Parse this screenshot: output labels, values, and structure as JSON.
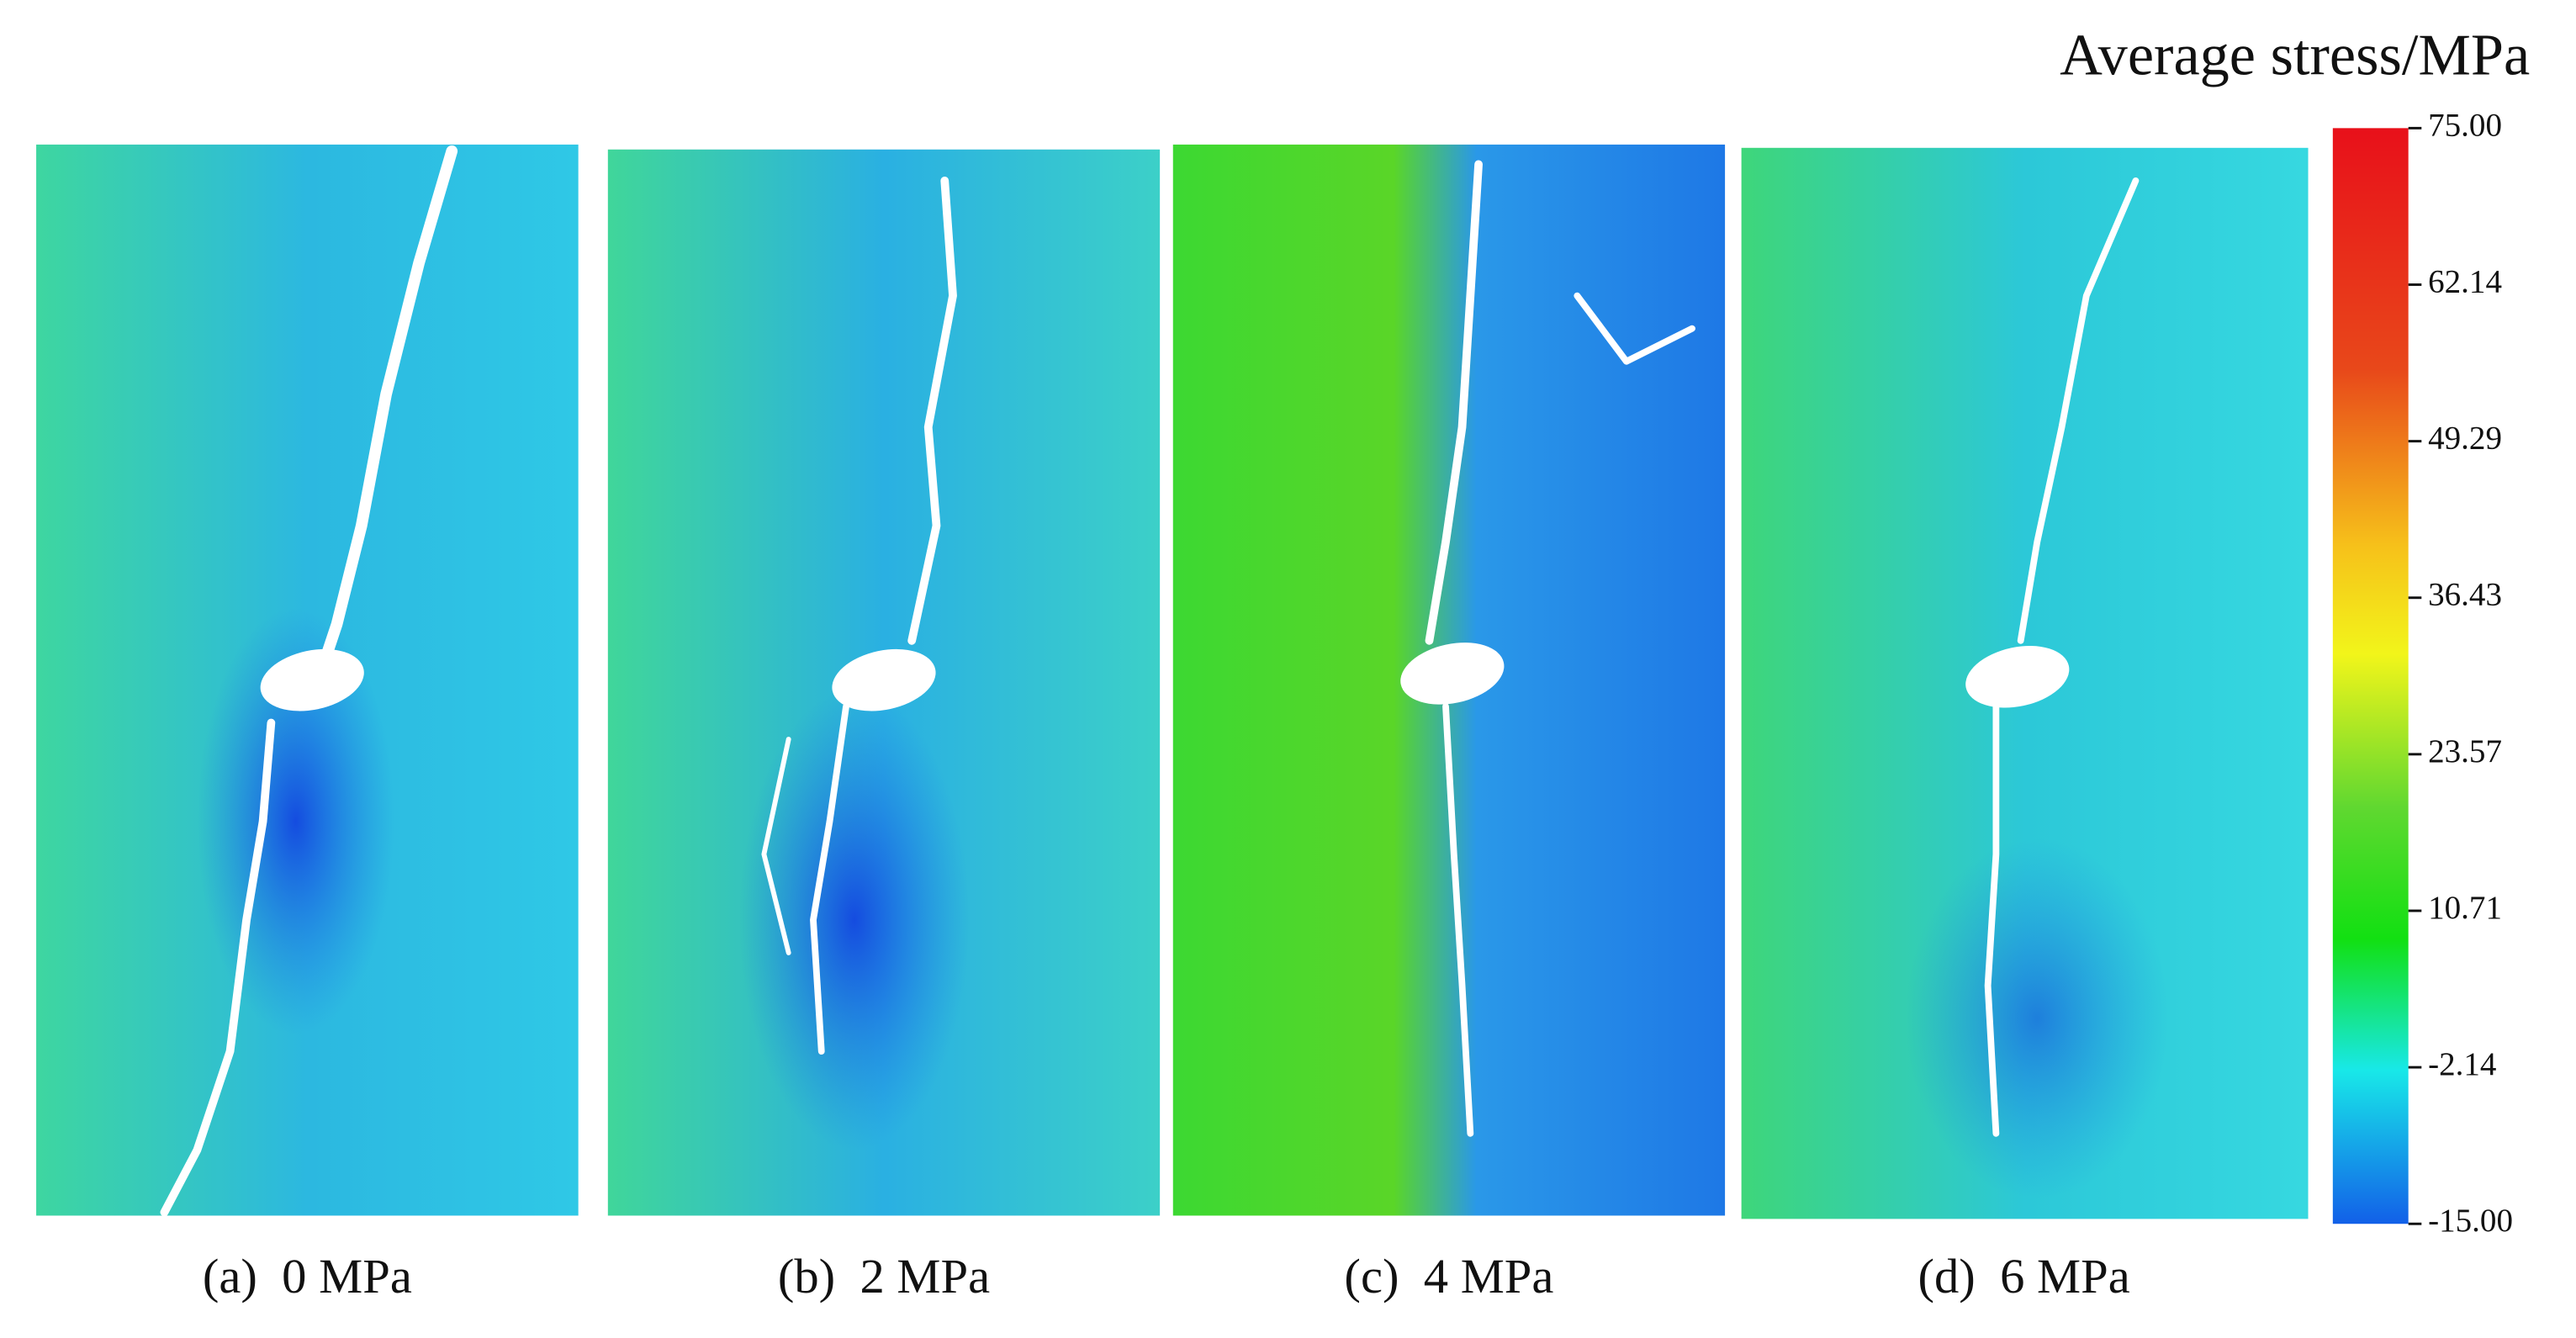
{
  "colorbar": {
    "title": "Average stress/MPa",
    "ticks": [
      "75.00",
      "62.14",
      "49.29",
      "36.43",
      "23.57",
      "10.71",
      "-2.14",
      "-15.00"
    ]
  },
  "panels": [
    {
      "caption": "(a)  0 MPa"
    },
    {
      "caption": "(b)  2 MPa"
    },
    {
      "caption": "(c)  4 MPa"
    },
    {
      "caption": "(d)  6 MPa"
    }
  ]
}
